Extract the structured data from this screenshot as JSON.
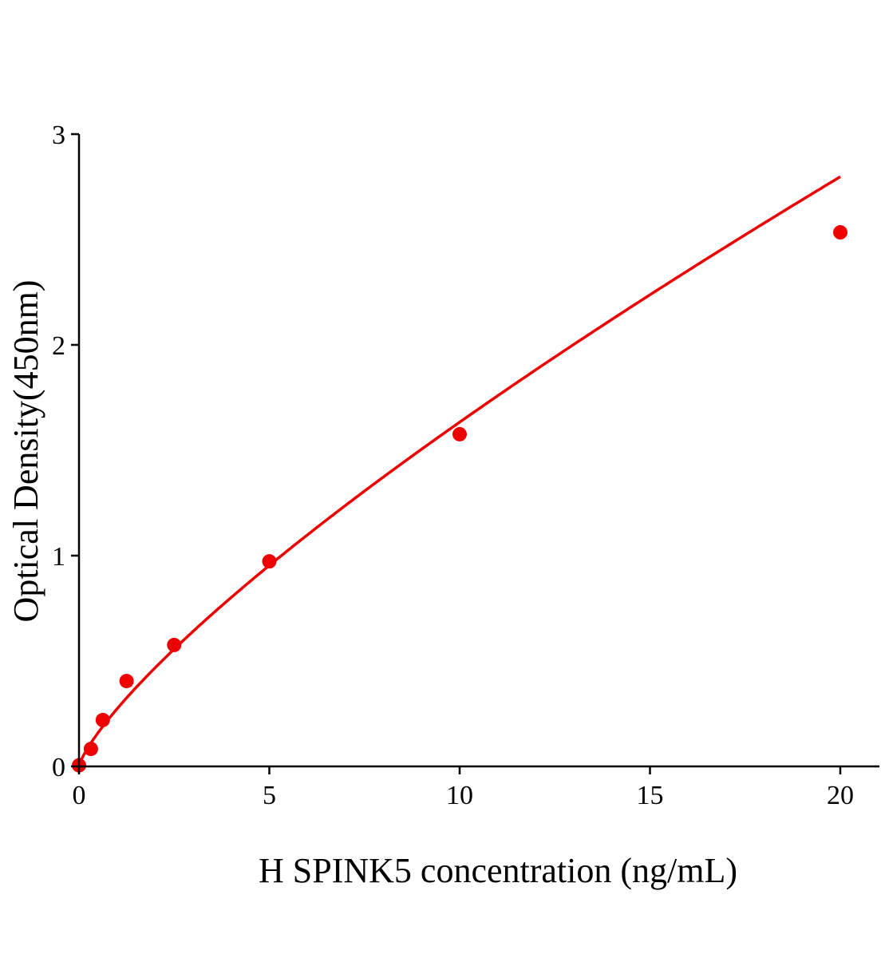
{
  "chart_data": {
    "type": "scatter",
    "title": "",
    "xlabel": "H SPINK5 concentration (ng/mL)",
    "ylabel": "Optical Density(450nm)",
    "xlim": [
      0,
      21
    ],
    "ylim": [
      0,
      3
    ],
    "xticks": [
      "0",
      "5",
      "10",
      "15",
      "20"
    ],
    "yticks": [
      "0",
      "1",
      "2",
      "3"
    ],
    "grid": false,
    "legend": "none",
    "series": [
      {
        "x": [
          0,
          0.3125,
          0.625,
          1.25,
          2.5,
          5,
          10,
          20
        ],
        "y": [
          0.005,
          0.083,
          0.22,
          0.405,
          0.576,
          0.973,
          1.576,
          2.534
        ],
        "color": "#ee0000",
        "fit_curve": true
      }
    ]
  }
}
